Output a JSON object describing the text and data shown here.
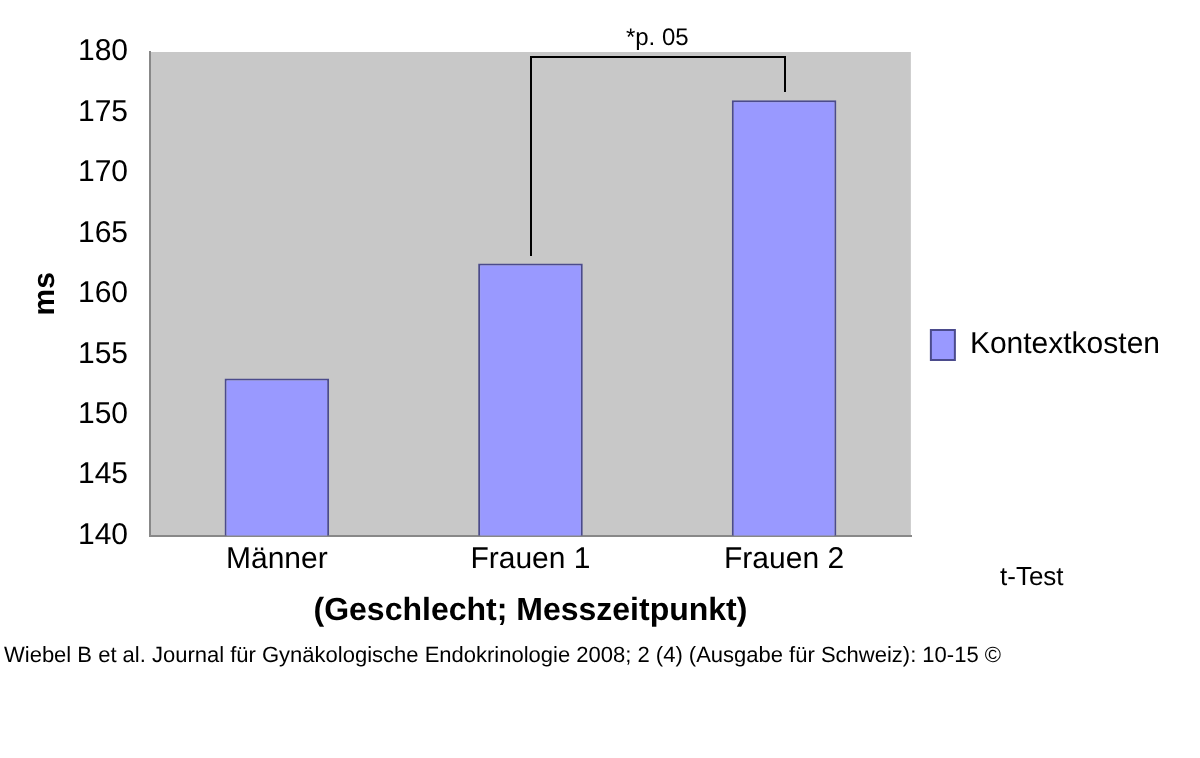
{
  "chart_data": {
    "type": "bar",
    "xlabel": "(Geschlecht; Messzeitpunkt)",
    "ylabel": "ms",
    "categories": [
      "Männer",
      "Frauen 1",
      "Frauen 2"
    ],
    "series": [
      {
        "name": "Kontextkosten",
        "color": "#9999ff",
        "values": [
          153,
          162.5,
          176
        ]
      }
    ],
    "ylim": [
      140,
      180
    ],
    "yticks": [
      140,
      145,
      150,
      155,
      160,
      165,
      170,
      175,
      180
    ],
    "grid": false,
    "legend": "right",
    "annotations": [
      "*p. 05",
      "t-Test",
      "Wiebel B et al. Journal für Gynäkologische Endokrinologie 2008; 2 (4) (Ausgabe für Schweiz): 10-15 ©"
    ]
  }
}
